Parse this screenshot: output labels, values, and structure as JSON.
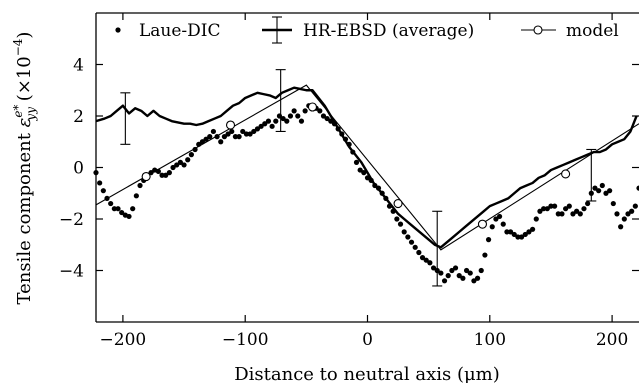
{
  "chart_data": {
    "type": "line",
    "xlabel": "Distance to neutral axis (μm)",
    "ylabel": {
      "prefix": "Tensile component ",
      "symbol": "ε",
      "sub": "yy",
      "sup": "e*",
      "suffix_open": " (×10",
      "suffix_exp": "−4",
      "suffix_close": ")"
    },
    "xlim": [
      -222,
      222
    ],
    "ylim": [
      -6,
      6
    ],
    "xticks": [
      -200,
      -100,
      0,
      100,
      200
    ],
    "xtick_labels": [
      "−200",
      "−100",
      "0",
      "100",
      "200"
    ],
    "yticks": [
      -4,
      -2,
      0,
      2,
      4
    ],
    "ytick_labels": [
      "−4",
      "−2",
      "0",
      "2",
      "4"
    ],
    "grid": false,
    "legend_position": "top",
    "series": [
      {
        "name": "Laue-DIC",
        "style": "dots",
        "x": [
          -222,
          -219,
          -216,
          -213,
          -210,
          -207,
          -204,
          -201,
          -198,
          -195,
          -192,
          -189,
          -186,
          -183,
          -180,
          -177,
          -174,
          -171,
          -168,
          -165,
          -162,
          -159,
          -156,
          -153,
          -150,
          -147,
          -144,
          -141,
          -138,
          -135,
          -132,
          -129,
          -126,
          -123,
          -120,
          -117,
          -114,
          -111,
          -108,
          -105,
          -102,
          -99,
          -96,
          -93,
          -90,
          -87,
          -84,
          -81,
          -78,
          -75,
          -72,
          -69,
          -66,
          -63,
          -60,
          -57,
          -54,
          -51,
          -48,
          -45,
          -42,
          -39,
          -36,
          -33,
          -30,
          -27,
          -24,
          -21,
          -18,
          -15,
          -12,
          -9,
          -6,
          -3,
          0,
          3,
          6,
          9,
          12,
          15,
          18,
          21,
          24,
          27,
          30,
          33,
          36,
          39,
          42,
          45,
          48,
          51,
          54,
          57,
          60,
          63,
          66,
          69,
          72,
          75,
          78,
          81,
          84,
          87,
          90,
          93,
          96,
          99,
          102,
          105,
          108,
          111,
          114,
          117,
          120,
          123,
          126,
          129,
          132,
          135,
          138,
          141,
          144,
          147,
          150,
          153,
          156,
          159,
          162,
          165,
          168,
          171,
          174,
          177,
          180,
          183,
          186,
          189,
          192,
          195,
          198,
          201,
          204,
          207,
          210,
          213,
          216,
          219,
          222
        ],
        "y": [
          -0.2,
          -0.6,
          -0.9,
          -1.2,
          -1.4,
          -1.6,
          -1.6,
          -1.75,
          -1.85,
          -1.9,
          -1.6,
          -1.1,
          -0.7,
          -0.5,
          -0.4,
          -0.2,
          -0.1,
          -0.15,
          -0.3,
          -0.3,
          -0.2,
          0.0,
          0.1,
          0.2,
          0.1,
          0.3,
          0.5,
          0.7,
          0.9,
          1.0,
          1.1,
          1.2,
          1.4,
          1.2,
          1.0,
          1.2,
          1.3,
          1.4,
          1.2,
          1.2,
          1.4,
          1.3,
          1.3,
          1.4,
          1.5,
          1.6,
          1.7,
          1.8,
          1.6,
          1.8,
          2.0,
          1.9,
          1.8,
          2.0,
          2.2,
          2.0,
          1.8,
          2.2,
          2.4,
          2.3,
          2.3,
          2.2,
          2.0,
          1.9,
          1.8,
          1.7,
          1.5,
          1.3,
          1.1,
          0.9,
          0.6,
          0.2,
          -0.1,
          -0.2,
          -0.4,
          -0.5,
          -0.7,
          -0.8,
          -1.0,
          -1.2,
          -1.5,
          -1.7,
          -2.0,
          -2.2,
          -2.5,
          -2.7,
          -2.9,
          -3.1,
          -3.3,
          -3.5,
          -3.6,
          -3.7,
          -3.9,
          -4.0,
          -4.1,
          -4.4,
          -4.2,
          -4.0,
          -3.9,
          -4.2,
          -4.3,
          -4.0,
          -4.1,
          -4.4,
          -4.3,
          -4.0,
          -3.4,
          -2.8,
          -2.3,
          -2.0,
          -1.9,
          -2.2,
          -2.5,
          -2.5,
          -2.6,
          -2.7,
          -2.7,
          -2.6,
          -2.5,
          -2.4,
          -2.0,
          -1.7,
          -1.6,
          -1.6,
          -1.5,
          -1.5,
          -1.8,
          -1.8,
          -1.6,
          -1.5,
          -1.8,
          -1.7,
          -1.8,
          -1.6,
          -1.4,
          -1.0,
          -0.8,
          -0.9,
          -0.7,
          -1.0,
          -0.9,
          -1.4,
          -1.8,
          -2.3,
          -2.0,
          -1.8,
          -1.7,
          -1.5,
          -0.8
        ]
      },
      {
        "name": "HR-EBSD (average)",
        "style": "line",
        "x": [
          -222,
          -215,
          -210,
          -205,
          -200,
          -195,
          -190,
          -185,
          -180,
          -175,
          -170,
          -165,
          -160,
          -155,
          -150,
          -145,
          -140,
          -135,
          -130,
          -125,
          -120,
          -115,
          -110,
          -105,
          -100,
          -95,
          -90,
          -85,
          -80,
          -75,
          -70,
          -65,
          -60,
          -55,
          -50,
          -45,
          -40,
          -35,
          -30,
          -25,
          -20,
          -15,
          -10,
          -5,
          0,
          5,
          10,
          15,
          20,
          25,
          30,
          35,
          40,
          45,
          50,
          55,
          60,
          65,
          70,
          75,
          80,
          85,
          90,
          95,
          100,
          105,
          110,
          115,
          120,
          125,
          130,
          135,
          140,
          145,
          150,
          155,
          160,
          165,
          170,
          175,
          180,
          185,
          190,
          195,
          200,
          205,
          210,
          215,
          220
        ],
        "y": [
          1.8,
          1.9,
          2.0,
          2.2,
          2.4,
          2.1,
          2.3,
          2.2,
          2.0,
          2.2,
          2.0,
          1.9,
          1.8,
          1.75,
          1.7,
          1.7,
          1.65,
          1.7,
          1.8,
          1.9,
          2.0,
          2.2,
          2.4,
          2.5,
          2.7,
          2.8,
          2.9,
          2.85,
          2.8,
          2.7,
          2.9,
          3.0,
          3.1,
          3.05,
          3.0,
          3.0,
          2.7,
          2.4,
          2.0,
          1.6,
          1.2,
          0.8,
          0.5,
          0.2,
          -0.2,
          -0.6,
          -0.9,
          -1.2,
          -1.5,
          -1.8,
          -2.0,
          -2.2,
          -2.4,
          -2.6,
          -2.8,
          -3.0,
          -3.1,
          -2.9,
          -2.7,
          -2.5,
          -2.3,
          -2.1,
          -1.9,
          -1.7,
          -1.5,
          -1.4,
          -1.3,
          -1.2,
          -1.0,
          -0.8,
          -0.7,
          -0.6,
          -0.4,
          -0.3,
          -0.1,
          0.0,
          0.1,
          0.2,
          0.3,
          0.4,
          0.5,
          0.6,
          0.6,
          0.7,
          0.9,
          1.0,
          1.1,
          1.4,
          2.0
        ]
      },
      {
        "name": "model",
        "style": "line-circles",
        "x": [
          -222,
          -50,
          60,
          222
        ],
        "y": [
          -1.45,
          3.2,
          -3.2,
          1.7
        ],
        "markers_x": [
          -181,
          -112,
          -45,
          25,
          94,
          162
        ],
        "markers_y": [
          -0.35,
          1.65,
          2.35,
          -1.4,
          -2.2,
          -0.25
        ]
      }
    ],
    "error_bars": {
      "series": "HR-EBSD (average)",
      "x": [
        -198,
        -71,
        57,
        183
      ],
      "center": [
        1.9,
        2.6,
        -3.15,
        -0.3
      ],
      "half_width": [
        1.0,
        1.2,
        1.45,
        1.0
      ]
    }
  }
}
